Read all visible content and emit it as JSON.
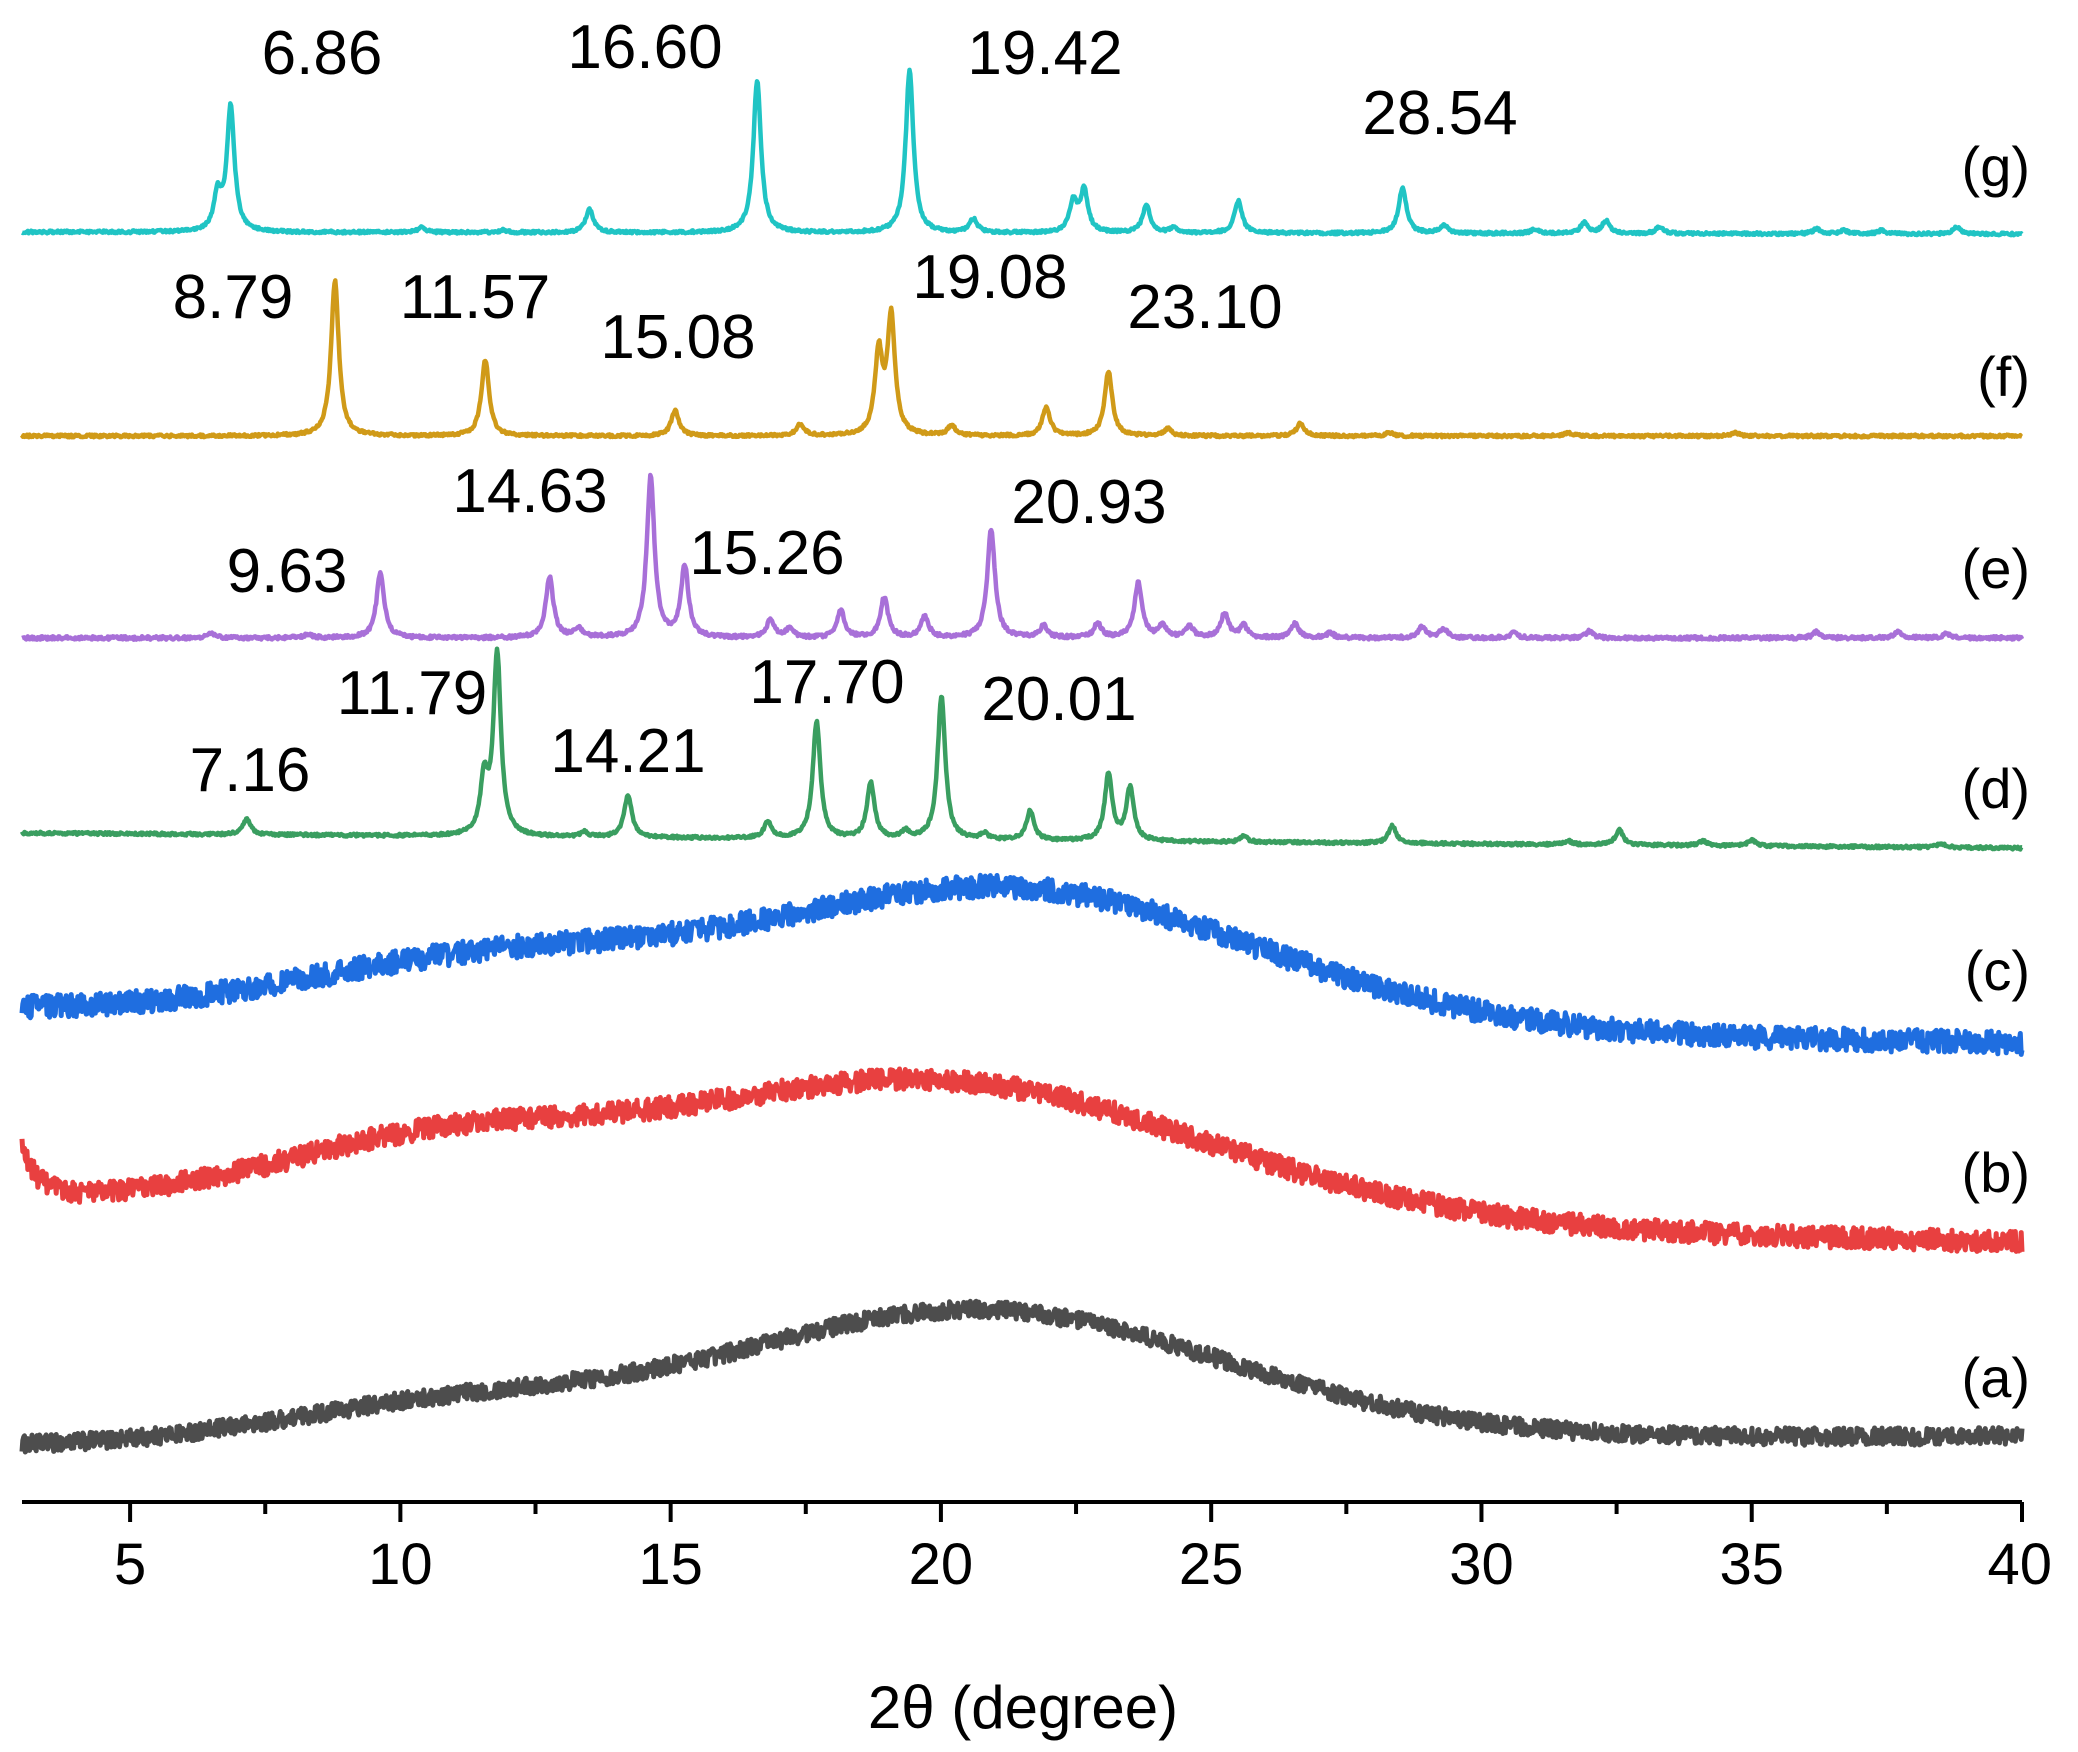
{
  "chart_data": {
    "type": "line",
    "title": "",
    "xlabel": "2θ (degree)",
    "ylabel": "",
    "xlim": [
      3,
      40
    ],
    "x_ticks": [
      5,
      10,
      15,
      20,
      25,
      30,
      35,
      40
    ],
    "x_tick_labels": [
      "5",
      "10",
      "15",
      "20",
      "25",
      "30",
      "35",
      "40"
    ],
    "minor_x_ticks": [
      7.5,
      12.5,
      17.5,
      22.5,
      27.5,
      32.5,
      37.5
    ],
    "grid": false,
    "legend": "none",
    "stacked_offset_scale": "arbitrary",
    "series": [
      {
        "name": "(a)",
        "color": "#4d4d4d",
        "kind": "amorphous",
        "baseline": 0.0,
        "noise": 0.7,
        "humps": [
          {
            "center": 20.6,
            "width": 4.6,
            "height": 10.5
          },
          {
            "center": 10.8,
            "width": 3.2,
            "height": 2.8
          }
        ],
        "peaks": [],
        "labeled_peaks": []
      },
      {
        "name": "(b)",
        "color": "#e84040",
        "kind": "amorphous",
        "baseline": 0.0,
        "noise": 0.9,
        "edge_rise": {
          "center": 3.0,
          "width": 0.3,
          "height": 4.0
        },
        "humps": [
          {
            "center": 19.8,
            "width": 5.0,
            "height": 11.5
          },
          {
            "center": 10.6,
            "width": 3.0,
            "height": 4.5
          }
        ],
        "peaks": [],
        "labeled_peaks": []
      },
      {
        "name": "(c)",
        "color": "#1f6ee0",
        "kind": "amorphous",
        "baseline": 0.0,
        "noise": 1.0,
        "humps": [
          {
            "center": 21.2,
            "width": 4.6,
            "height": 12.0
          },
          {
            "center": 11.5,
            "width": 3.4,
            "height": 4.5
          }
        ],
        "peaks": [],
        "labeled_peaks": []
      },
      {
        "name": "(d)",
        "color": "#3a9e60",
        "kind": "crystalline",
        "baseline": 0.0,
        "noise": 0.12,
        "peaks": [
          [
            7.16,
            1.3
          ],
          [
            11.55,
            4.5
          ],
          [
            11.79,
            15.5
          ],
          [
            13.4,
            0.4
          ],
          [
            14.21,
            3.6
          ],
          [
            16.8,
            1.4
          ],
          [
            17.7,
            10.0
          ],
          [
            18.7,
            4.8
          ],
          [
            19.35,
            0.6
          ],
          [
            20.01,
            12.3
          ],
          [
            20.8,
            0.5
          ],
          [
            21.65,
            2.5
          ],
          [
            23.1,
            5.6
          ],
          [
            23.5,
            4.5
          ],
          [
            25.6,
            0.5
          ],
          [
            28.35,
            1.5
          ],
          [
            31.6,
            0.3
          ],
          [
            32.55,
            1.3
          ],
          [
            34.1,
            0.4
          ],
          [
            35.0,
            0.5
          ],
          [
            38.5,
            0.3
          ]
        ],
        "labeled_peaks": [
          {
            "x": 7.16,
            "text": "7.16"
          },
          {
            "x": 11.79,
            "text": "11.79"
          },
          {
            "x": 14.21,
            "text": "14.21"
          },
          {
            "x": 17.7,
            "text": "17.70"
          },
          {
            "x": 20.01,
            "text": "20.01"
          }
        ]
      },
      {
        "name": "(e)",
        "color": "#a870d8",
        "kind": "crystalline",
        "baseline": 0.0,
        "noise": 0.15,
        "peaks": [
          [
            6.5,
            0.4
          ],
          [
            8.3,
            0.3
          ],
          [
            9.63,
            5.6
          ],
          [
            12.76,
            5.2
          ],
          [
            13.3,
            0.8
          ],
          [
            14.63,
            13.8
          ],
          [
            15.26,
            6.0
          ],
          [
            16.85,
            1.6
          ],
          [
            17.2,
            0.7
          ],
          [
            18.15,
            2.3
          ],
          [
            18.95,
            3.4
          ],
          [
            19.7,
            1.8
          ],
          [
            20.93,
            9.3
          ],
          [
            21.9,
            1.0
          ],
          [
            22.9,
            1.2
          ],
          [
            23.65,
            4.7
          ],
          [
            24.1,
            1.0
          ],
          [
            24.6,
            1.0
          ],
          [
            25.25,
            2.1
          ],
          [
            25.6,
            1.0
          ],
          [
            26.55,
            1.2
          ],
          [
            27.2,
            0.4
          ],
          [
            28.9,
            0.9
          ],
          [
            29.3,
            0.8
          ],
          [
            30.6,
            0.4
          ],
          [
            32.0,
            0.6
          ],
          [
            36.2,
            0.5
          ],
          [
            37.7,
            0.5
          ],
          [
            38.6,
            0.4
          ]
        ],
        "labeled_peaks": [
          {
            "x": 9.63,
            "text": "9.63"
          },
          {
            "x": 14.63,
            "text": "14.63"
          },
          {
            "x": 15.26,
            "text": "15.26"
          },
          {
            "x": 20.93,
            "text": "20.93"
          }
        ]
      },
      {
        "name": "(f)",
        "color": "#d09a18",
        "kind": "crystalline",
        "baseline": 0.0,
        "noise": 0.12,
        "peaks": [
          [
            8.79,
            13.5
          ],
          [
            11.57,
            6.6
          ],
          [
            15.08,
            2.2
          ],
          [
            17.4,
            1.0
          ],
          [
            18.85,
            7.0
          ],
          [
            19.08,
            10.2
          ],
          [
            20.2,
            0.9
          ],
          [
            21.95,
            2.5
          ],
          [
            23.1,
            5.6
          ],
          [
            24.2,
            0.6
          ],
          [
            26.65,
            1.1
          ],
          [
            28.3,
            0.3
          ],
          [
            31.6,
            0.3
          ],
          [
            34.7,
            0.3
          ]
        ],
        "labeled_peaks": [
          {
            "x": 8.79,
            "text": "8.79"
          },
          {
            "x": 11.57,
            "text": "11.57"
          },
          {
            "x": 15.08,
            "text": "15.08"
          },
          {
            "x": 19.08,
            "text": "19.08"
          },
          {
            "x": 23.1,
            "text": "23.10"
          }
        ]
      },
      {
        "name": "(g)",
        "color": "#20c4c4",
        "kind": "crystalline",
        "baseline": 0.0,
        "noise": 0.12,
        "peaks": [
          [
            6.62,
            3.0
          ],
          [
            6.86,
            10.8
          ],
          [
            10.4,
            0.4
          ],
          [
            11.9,
            0.2
          ],
          [
            13.5,
            2.0
          ],
          [
            16.6,
            13.2
          ],
          [
            19.42,
            14.1
          ],
          [
            20.6,
            1.2
          ],
          [
            22.45,
            2.6
          ],
          [
            22.65,
            3.6
          ],
          [
            23.8,
            2.4
          ],
          [
            24.3,
            0.4
          ],
          [
            25.5,
            2.8
          ],
          [
            28.54,
            4.0
          ],
          [
            29.3,
            0.7
          ],
          [
            31.0,
            0.4
          ],
          [
            31.9,
            0.9
          ],
          [
            32.3,
            1.1
          ],
          [
            33.3,
            0.6
          ],
          [
            36.2,
            0.4
          ],
          [
            36.7,
            0.3
          ],
          [
            37.4,
            0.3
          ],
          [
            38.8,
            0.6
          ]
        ],
        "labeled_peaks": [
          {
            "x": 6.86,
            "text": "6.86"
          },
          {
            "x": 16.6,
            "text": "16.60"
          },
          {
            "x": 19.42,
            "text": "19.42"
          },
          {
            "x": 28.54,
            "text": "28.54"
          }
        ]
      }
    ]
  }
}
